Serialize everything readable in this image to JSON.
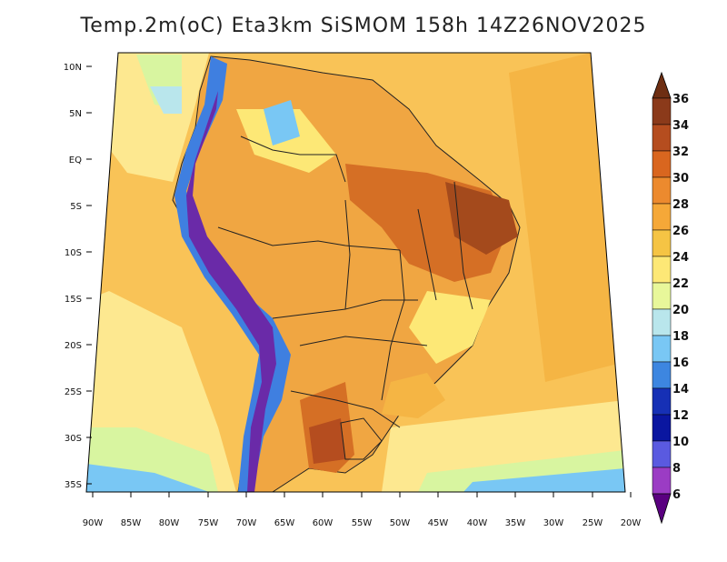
{
  "title": "Temp.2m(oC) Eta3km SiSMOM 158h 14Z26NOV2025",
  "latitude_labels": [
    "10N",
    "5N",
    "EQ",
    "5S",
    "10S",
    "15S",
    "20S",
    "25S",
    "30S",
    "35S"
  ],
  "longitude_labels": [
    "90W",
    "85W",
    "80W",
    "75W",
    "70W",
    "65W",
    "60W",
    "55W",
    "50W",
    "45W",
    "40W",
    "35W",
    "30W",
    "25W",
    "20W"
  ],
  "colorbar": {
    "labels": [
      "36",
      "34",
      "32",
      "30",
      "28",
      "26",
      "24",
      "22",
      "20",
      "18",
      "16",
      "14",
      "12",
      "10",
      "8",
      "6"
    ],
    "colors": [
      "#6e2e12",
      "#8b3a1a",
      "#b54d1f",
      "#d9661f",
      "#ec8a2e",
      "#f5b544",
      "#fde876",
      "#fdf7a6",
      "#d8f5a0",
      "#b9e6ec",
      "#79c7f4",
      "#3d86e0",
      "#1630b5",
      "#0a16a0",
      "#5a5ae0",
      "#9b3cc4",
      "#7a1a9e",
      "#5a0080"
    ]
  },
  "field_colors": {
    "ocean_warm": "#f9c357",
    "ocean_cool": "#fde890",
    "ocean_cold": "#fdf7b0",
    "south_cold": "#a8e0f0",
    "land": "#f0a642",
    "land_hot": "#d56f25",
    "land_hottest": "#a44a1c",
    "andes_cold": "#3f7fe0",
    "andes_colder": "#6a2aa8",
    "pacific_nw": "#b9e6ec"
  }
}
